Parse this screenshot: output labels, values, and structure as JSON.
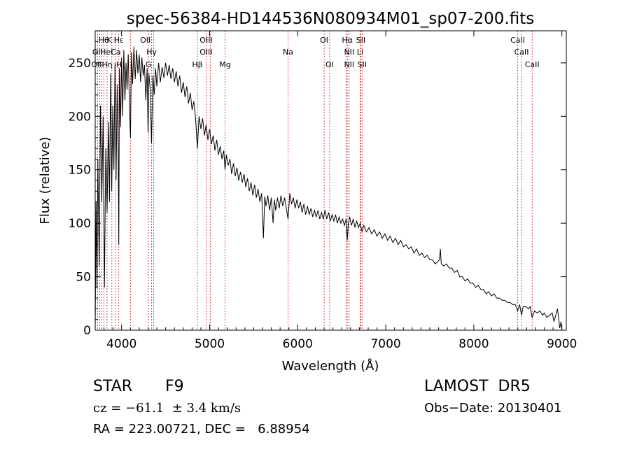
{
  "chart_data": {
    "type": "line",
    "title": "spec-56384-HD144536N080934M01_sp07-200.fits",
    "xlabel": "Wavelength (Å)",
    "ylabel": "Flux (relative)",
    "xlim": [
      3700,
      9050
    ],
    "ylim": [
      0,
      280
    ],
    "xticks": [
      4000,
      5000,
      6000,
      7000,
      8000,
      9000
    ],
    "yticks": [
      0,
      50,
      100,
      150,
      200,
      250
    ],
    "grid": false,
    "series": [
      {
        "color": "#000000",
        "points": [
          [
            3700,
            0
          ],
          [
            3705,
            60
          ],
          [
            3710,
            120
          ],
          [
            3720,
            40
          ],
          [
            3730,
            160
          ],
          [
            3745,
            60
          ],
          [
            3760,
            210
          ],
          [
            3775,
            120
          ],
          [
            3790,
            200
          ],
          [
            3805,
            40
          ],
          [
            3820,
            170
          ],
          [
            3835,
            110
          ],
          [
            3850,
            195
          ],
          [
            3862,
            120
          ],
          [
            3875,
            240
          ],
          [
            3888,
            130
          ],
          [
            3900,
            210
          ],
          [
            3912,
            150
          ],
          [
            3925,
            250
          ],
          [
            3937,
            140
          ],
          [
            3950,
            230
          ],
          [
            3962,
            160
          ],
          [
            3968,
            80
          ],
          [
            3975,
            245
          ],
          [
            3988,
            190
          ],
          [
            4000,
            255
          ],
          [
            4012,
            200
          ],
          [
            4025,
            262
          ],
          [
            4038,
            215
          ],
          [
            4050,
            250
          ],
          [
            4062,
            225
          ],
          [
            4075,
            258
          ],
          [
            4090,
            205
          ],
          [
            4101,
            180
          ],
          [
            4112,
            260
          ],
          [
            4125,
            230
          ],
          [
            4140,
            265
          ],
          [
            4155,
            235
          ],
          [
            4170,
            262
          ],
          [
            4185,
            240
          ],
          [
            4200,
            258
          ],
          [
            4215,
            232
          ],
          [
            4230,
            255
          ],
          [
            4245,
            238
          ],
          [
            4260,
            248
          ],
          [
            4275,
            215
          ],
          [
            4290,
            245
          ],
          [
            4300,
            185
          ],
          [
            4310,
            240
          ],
          [
            4325,
            225
          ],
          [
            4340,
            175
          ],
          [
            4355,
            238
          ],
          [
            4370,
            220
          ],
          [
            4385,
            245
          ],
          [
            4400,
            228
          ],
          [
            4420,
            250
          ],
          [
            4440,
            232
          ],
          [
            4460,
            246
          ],
          [
            4480,
            236
          ],
          [
            4500,
            250
          ],
          [
            4520,
            238
          ],
          [
            4540,
            248
          ],
          [
            4560,
            235
          ],
          [
            4580,
            245
          ],
          [
            4600,
            232
          ],
          [
            4620,
            242
          ],
          [
            4640,
            228
          ],
          [
            4660,
            238
          ],
          [
            4680,
            222
          ],
          [
            4700,
            232
          ],
          [
            4720,
            218
          ],
          [
            4740,
            228
          ],
          [
            4760,
            212
          ],
          [
            4780,
            222
          ],
          [
            4800,
            206
          ],
          [
            4820,
            214
          ],
          [
            4840,
            198
          ],
          [
            4861,
            170
          ],
          [
            4880,
            200
          ],
          [
            4900,
            188
          ],
          [
            4920,
            198
          ],
          [
            4940,
            182
          ],
          [
            4960,
            192
          ],
          [
            4980,
            178
          ],
          [
            5000,
            188
          ],
          [
            5020,
            174
          ],
          [
            5040,
            182
          ],
          [
            5060,
            168
          ],
          [
            5080,
            178
          ],
          [
            5100,
            164
          ],
          [
            5120,
            172
          ],
          [
            5140,
            160
          ],
          [
            5160,
            168
          ],
          [
            5175,
            150
          ],
          [
            5190,
            164
          ],
          [
            5210,
            154
          ],
          [
            5230,
            160
          ],
          [
            5250,
            146
          ],
          [
            5270,
            156
          ],
          [
            5290,
            144
          ],
          [
            5310,
            152
          ],
          [
            5330,
            140
          ],
          [
            5350,
            148
          ],
          [
            5370,
            138
          ],
          [
            5390,
            146
          ],
          [
            5410,
            134
          ],
          [
            5430,
            142
          ],
          [
            5450,
            130
          ],
          [
            5470,
            138
          ],
          [
            5490,
            126
          ],
          [
            5510,
            136
          ],
          [
            5530,
            124
          ],
          [
            5550,
            132
          ],
          [
            5570,
            120
          ],
          [
            5590,
            128
          ],
          [
            5610,
            86
          ],
          [
            5625,
            125
          ],
          [
            5640,
            116
          ],
          [
            5660,
            126
          ],
          [
            5680,
            112
          ],
          [
            5700,
            124
          ],
          [
            5720,
            100
          ],
          [
            5735,
            122
          ],
          [
            5750,
            112
          ],
          [
            5770,
            124
          ],
          [
            5790,
            114
          ],
          [
            5810,
            126
          ],
          [
            5830,
            116
          ],
          [
            5850,
            124
          ],
          [
            5870,
            114
          ],
          [
            5890,
            104
          ],
          [
            5910,
            128
          ],
          [
            5930,
            118
          ],
          [
            5950,
            124
          ],
          [
            5970,
            114
          ],
          [
            5990,
            122
          ],
          [
            6010,
            114
          ],
          [
            6030,
            120
          ],
          [
            6050,
            110
          ],
          [
            6070,
            118
          ],
          [
            6090,
            108
          ],
          [
            6110,
            116
          ],
          [
            6130,
            108
          ],
          [
            6150,
            114
          ],
          [
            6170,
            106
          ],
          [
            6190,
            112
          ],
          [
            6210,
            106
          ],
          [
            6230,
            112
          ],
          [
            6250,
            104
          ],
          [
            6270,
            110
          ],
          [
            6290,
            104
          ],
          [
            6310,
            112
          ],
          [
            6330,
            104
          ],
          [
            6350,
            110
          ],
          [
            6370,
            102
          ],
          [
            6390,
            108
          ],
          [
            6410,
            102
          ],
          [
            6430,
            108
          ],
          [
            6450,
            100
          ],
          [
            6470,
            106
          ],
          [
            6490,
            100
          ],
          [
            6510,
            104
          ],
          [
            6530,
            98
          ],
          [
            6550,
            104
          ],
          [
            6563,
            84
          ],
          [
            6575,
            100
          ],
          [
            6590,
            106
          ],
          [
            6610,
            98
          ],
          [
            6630,
            104
          ],
          [
            6650,
            96
          ],
          [
            6670,
            102
          ],
          [
            6690,
            96
          ],
          [
            6710,
            100
          ],
          [
            6730,
            92
          ],
          [
            6750,
            98
          ],
          [
            6780,
            92
          ],
          [
            6810,
            96
          ],
          [
            6840,
            90
          ],
          [
            6870,
            94
          ],
          [
            6900,
            88
          ],
          [
            6930,
            92
          ],
          [
            6960,
            86
          ],
          [
            6990,
            90
          ],
          [
            7020,
            84
          ],
          [
            7050,
            88
          ],
          [
            7080,
            82
          ],
          [
            7110,
            86
          ],
          [
            7140,
            80
          ],
          [
            7170,
            84
          ],
          [
            7200,
            78
          ],
          [
            7230,
            80
          ],
          [
            7260,
            76
          ],
          [
            7290,
            78
          ],
          [
            7320,
            72
          ],
          [
            7350,
            76
          ],
          [
            7380,
            70
          ],
          [
            7410,
            72
          ],
          [
            7440,
            68
          ],
          [
            7470,
            70
          ],
          [
            7500,
            66
          ],
          [
            7530,
            66
          ],
          [
            7560,
            62
          ],
          [
            7590,
            64
          ],
          [
            7610,
            66
          ],
          [
            7620,
            76
          ],
          [
            7630,
            62
          ],
          [
            7660,
            60
          ],
          [
            7690,
            62
          ],
          [
            7720,
            58
          ],
          [
            7750,
            58
          ],
          [
            7780,
            54
          ],
          [
            7810,
            56
          ],
          [
            7840,
            50
          ],
          [
            7870,
            50
          ],
          [
            7900,
            46
          ],
          [
            7930,
            48
          ],
          [
            7960,
            44
          ],
          [
            7990,
            44
          ],
          [
            8020,
            40
          ],
          [
            8050,
            42
          ],
          [
            8080,
            38
          ],
          [
            8110,
            38
          ],
          [
            8140,
            34
          ],
          [
            8170,
            36
          ],
          [
            8200,
            32
          ],
          [
            8230,
            34
          ],
          [
            8260,
            30
          ],
          [
            8290,
            30
          ],
          [
            8320,
            28
          ],
          [
            8350,
            28
          ],
          [
            8380,
            26
          ],
          [
            8410,
            26
          ],
          [
            8440,
            24
          ],
          [
            8470,
            24
          ],
          [
            8498,
            18
          ],
          [
            8520,
            24
          ],
          [
            8542,
            14
          ],
          [
            8560,
            22
          ],
          [
            8590,
            22
          ],
          [
            8620,
            20
          ],
          [
            8640,
            22
          ],
          [
            8662,
            12
          ],
          [
            8690,
            18
          ],
          [
            8720,
            16
          ],
          [
            8750,
            18
          ],
          [
            8780,
            14
          ],
          [
            8800,
            16
          ],
          [
            8830,
            12
          ],
          [
            8860,
            14
          ],
          [
            8890,
            16
          ],
          [
            8910,
            8
          ],
          [
            8930,
            14
          ],
          [
            8950,
            20
          ],
          [
            8965,
            10
          ],
          [
            8975,
            2
          ],
          [
            8990,
            8
          ],
          [
            9000,
            0
          ]
        ]
      }
    ],
    "line_labels": [
      {
        "x": 3798,
        "row": 0,
        "text": "Hθ"
      },
      {
        "x": 3860,
        "row": 0,
        "text": "K"
      },
      {
        "x": 3968,
        "row": 0,
        "text": "Hε"
      },
      {
        "x": 4270,
        "row": 0,
        "text": "OII"
      },
      {
        "x": 4960,
        "row": 0,
        "text": "OIII"
      },
      {
        "x": 6300,
        "row": 0,
        "text": "OI"
      },
      {
        "x": 6563,
        "row": 0,
        "text": "Hα"
      },
      {
        "x": 6716,
        "row": 0,
        "text": "SII"
      },
      {
        "x": 8498,
        "row": 0,
        "text": "CaII"
      },
      {
        "x": 3727,
        "row": 1,
        "text": "OII"
      },
      {
        "x": 3830,
        "row": 1,
        "text": "HeI"
      },
      {
        "x": 3933,
        "row": 1,
        "text": "Ca"
      },
      {
        "x": 4340,
        "row": 1,
        "text": "Hγ"
      },
      {
        "x": 4959,
        "row": 1,
        "text": "OIII"
      },
      {
        "x": 5890,
        "row": 1,
        "text": "Na"
      },
      {
        "x": 6584,
        "row": 1,
        "text": "NII"
      },
      {
        "x": 6708,
        "row": 1,
        "text": "Li"
      },
      {
        "x": 8542,
        "row": 1,
        "text": "CaII"
      },
      {
        "x": 3715,
        "row": 2,
        "text": "OII"
      },
      {
        "x": 3835,
        "row": 2,
        "text": "Hη"
      },
      {
        "x": 3970,
        "row": 2,
        "text": "H"
      },
      {
        "x": 4305,
        "row": 2,
        "text": "G"
      },
      {
        "x": 4861,
        "row": 2,
        "text": "Hβ"
      },
      {
        "x": 5175,
        "row": 2,
        "text": "Mg"
      },
      {
        "x": 6363,
        "row": 2,
        "text": "OI"
      },
      {
        "x": 6584,
        "row": 2,
        "text": "NII"
      },
      {
        "x": 6731,
        "row": 2,
        "text": "SII"
      },
      {
        "x": 8662,
        "row": 2,
        "text": "CaII"
      }
    ],
    "line_markers": [
      3727,
      3750,
      3771,
      3798,
      3835,
      3889,
      3933,
      3968,
      4101,
      4305,
      4340,
      4363,
      4861,
      4959,
      5007,
      5175,
      5890,
      6300,
      6363,
      6548,
      6563,
      6584,
      6708,
      6716,
      6731,
      8498,
      8542,
      8662
    ],
    "marker_color": "#cc2222"
  },
  "info": {
    "class": "STAR",
    "subclass": "F9",
    "survey": "LAMOST  DR5",
    "cz": "cz = −61.1  ± 3.4 km/s",
    "obs_date": "Obs−Date: 20130401",
    "coords": "RA = 223.00721, DEC =   6.88954"
  }
}
